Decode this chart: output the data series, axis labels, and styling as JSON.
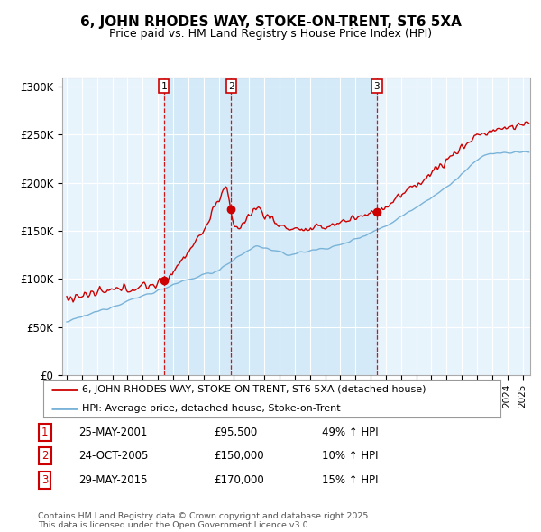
{
  "title": "6, JOHN RHODES WAY, STOKE-ON-TRENT, ST6 5XA",
  "subtitle": "Price paid vs. HM Land Registry's House Price Index (HPI)",
  "ylabel_ticks": [
    "£0",
    "£50K",
    "£100K",
    "£150K",
    "£200K",
    "£250K",
    "£300K"
  ],
  "ytick_vals": [
    0,
    50000,
    100000,
    150000,
    200000,
    250000,
    300000
  ],
  "ylim": [
    0,
    310000
  ],
  "xlim_start": 1994.7,
  "xlim_end": 2025.5,
  "hpi_color": "#7ab3d8",
  "price_color": "#cc0000",
  "shade_color": "#d0e8f8",
  "bg_color": "#e8f4fc",
  "transactions": [
    {
      "label": "1",
      "date": 2001.4,
      "price": 95500
    },
    {
      "label": "2",
      "date": 2005.82,
      "price": 150000
    },
    {
      "label": "3",
      "date": 2015.41,
      "price": 170000
    }
  ],
  "legend_entries": [
    "6, JOHN RHODES WAY, STOKE-ON-TRENT, ST6 5XA (detached house)",
    "HPI: Average price, detached house, Stoke-on-Trent"
  ],
  "table_rows": [
    {
      "num": "1",
      "date": "25-MAY-2001",
      "price": "£95,500",
      "hpi": "49% ↑ HPI"
    },
    {
      "num": "2",
      "date": "24-OCT-2005",
      "price": "£150,000",
      "hpi": "10% ↑ HPI"
    },
    {
      "num": "3",
      "date": "29-MAY-2015",
      "price": "£170,000",
      "hpi": "15% ↑ HPI"
    }
  ],
  "footnote": "Contains HM Land Registry data © Crown copyright and database right 2025.\nThis data is licensed under the Open Government Licence v3.0."
}
